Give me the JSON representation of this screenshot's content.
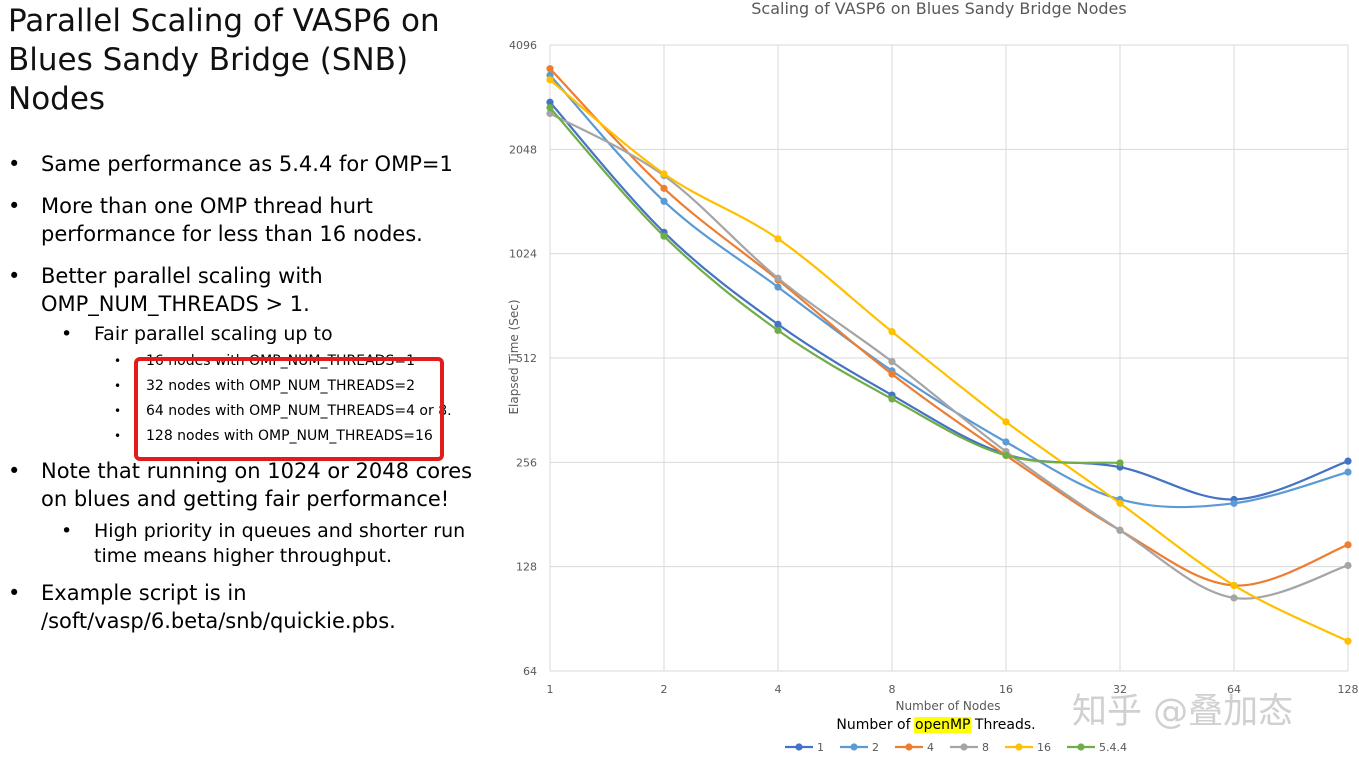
{
  "slide": {
    "title_line1": "Parallel Scaling of VASP6 on",
    "title_line2": "Blues Sandy Bridge (SNB) Nodes",
    "bullets": {
      "b1": "Same performance as 5.4.4 for OMP=1",
      "b2": "More than one OMP thread hurt performance for less than 16 nodes.",
      "b3": "Better parallel scaling with OMP_NUM_THREADS > 1.",
      "b3_sub": "Fair parallel scaling up to",
      "b3_items": [
        "16 nodes with OMP_NUM_THREADS=1",
        "32 nodes with OMP_NUM_THREADS=2",
        "64 nodes with OMP_NUM_THREADS=4 or 8.",
        "128 nodes with OMP_NUM_THREADS=16"
      ],
      "b4": "Note that running on 1024 or 2048 cores on blues and getting fair performance!",
      "b4_sub": "High priority in queues and shorter run time means higher throughput.",
      "b5": "Example script is in /soft/vasp/6.beta/snb/quickie.pbs."
    },
    "watermark": "知乎 @叠加态"
  },
  "chart_data": {
    "type": "line",
    "title": "Scaling of VASP6 on Blues Sandy Bridge Nodes",
    "xlabel": "Number of Nodes",
    "ylabel": "Elapsed Time (Sec)",
    "x_scale": "log2",
    "y_scale": "log2",
    "x": [
      1,
      2,
      4,
      8,
      16,
      32,
      64,
      128
    ],
    "x_tick_labels": [
      "1",
      "2",
      "4",
      "8",
      "16",
      "32",
      "64",
      "128"
    ],
    "y_ticks": [
      64,
      128,
      256,
      512,
      1024,
      2048,
      4096
    ],
    "y_tick_labels": [
      "64",
      "128",
      "256",
      "512",
      "1024",
      "2048",
      "4096"
    ],
    "ylim": [
      64,
      4096
    ],
    "grid": true,
    "legend_title_prefix": "Number of ",
    "legend_title_highlight": "openMP",
    "legend_title_suffix": " Threads.",
    "legend_position": "bottom",
    "series": [
      {
        "name": "1",
        "color": "#4472c4",
        "values": [
          2800,
          1180,
          640,
          400,
          270,
          248,
          200,
          258
        ]
      },
      {
        "name": "2",
        "color": "#5b9bd5",
        "values": [
          3350,
          1450,
          820,
          470,
          293,
          200,
          195,
          240
        ]
      },
      {
        "name": "4",
        "color": "#ed7d31",
        "values": [
          3500,
          1580,
          860,
          460,
          268,
          163,
          113,
          148
        ]
      },
      {
        "name": "8",
        "color": "#a5a5a5",
        "values": [
          2600,
          1720,
          870,
          500,
          275,
          163,
          104,
          129
        ]
      },
      {
        "name": "16",
        "color": "#ffc000",
        "values": [
          3250,
          1740,
          1130,
          610,
          335,
          195,
          113,
          78
        ]
      },
      {
        "name": "5.4.4",
        "color": "#70ad47",
        "values": [
          2700,
          1150,
          615,
          390,
          268,
          255,
          null,
          null
        ]
      }
    ]
  }
}
